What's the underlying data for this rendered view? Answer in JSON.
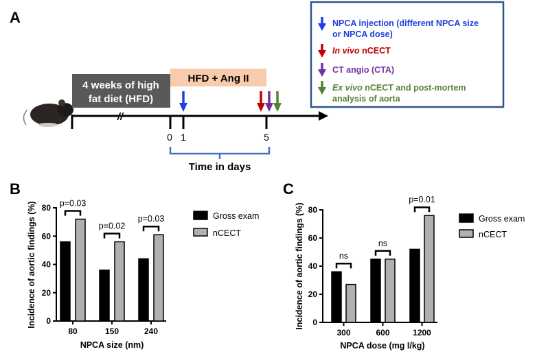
{
  "panel_a": {
    "label": "A",
    "pre_phase": "4 weeks of high fat diet (HFD)",
    "pre_phase_lines": [
      "4 weeks of high",
      "fat diet (HFD)"
    ],
    "treatment_phase": "HFD + Ang II",
    "break_mark": "//",
    "ticks": [
      "0",
      "1",
      "5"
    ],
    "time_label": "Time in days",
    "legend": [
      {
        "lines": [
          "NPCA injection (different NPCA size",
          "or NPCA dose)"
        ],
        "color": "#1f3fe0"
      },
      {
        "italic": "In vivo",
        "text": " nCECT",
        "color": "#c00000"
      },
      {
        "text": "CT angio (CTA)",
        "color": "#7030a0"
      },
      {
        "italic": "Ex vivo",
        "lines": [
          " nCECT and post-mortem",
          "analysis of aorta"
        ],
        "color": "#548235"
      }
    ],
    "colors": {
      "legend_border": "#2f528f",
      "pre_box": "#595959",
      "treatment_box": "#f8cbad",
      "bracket": "#4472c4"
    }
  },
  "chart_data": [
    {
      "panel": "B",
      "type": "bar",
      "categories": [
        "80",
        "150",
        "240"
      ],
      "series": [
        {
          "name": "Gross exam",
          "values": [
            56,
            36,
            44
          ],
          "color": "#000000"
        },
        {
          "name": "nCECT",
          "values": [
            72,
            56,
            61
          ],
          "color": "#b0b0b0"
        }
      ],
      "significance": [
        "p=0.03",
        "p=0.02",
        "p=0.03"
      ],
      "xlabel": "NPCA size (nm)",
      "ylabel": "Incidence of aortic findings (%)",
      "ylim": [
        0,
        80
      ],
      "yticks": [
        0,
        20,
        40,
        60,
        80
      ],
      "grid": false,
      "legend": "right"
    },
    {
      "panel": "C",
      "type": "bar",
      "categories": [
        "300",
        "600",
        "1200"
      ],
      "series": [
        {
          "name": "Gross exam",
          "values": [
            36,
            45,
            52
          ],
          "color": "#000000"
        },
        {
          "name": "nCECT",
          "values": [
            27,
            45,
            76
          ],
          "color": "#b0b0b0"
        }
      ],
      "significance": [
        "ns",
        "ns",
        "p=0.01"
      ],
      "xlabel": "NPCA dose (mg I/kg)",
      "ylabel": "Incidence of aortic findings (%)",
      "ylim": [
        0,
        80
      ],
      "yticks": [
        0,
        20,
        40,
        60,
        80
      ],
      "grid": false,
      "legend": "right"
    }
  ]
}
